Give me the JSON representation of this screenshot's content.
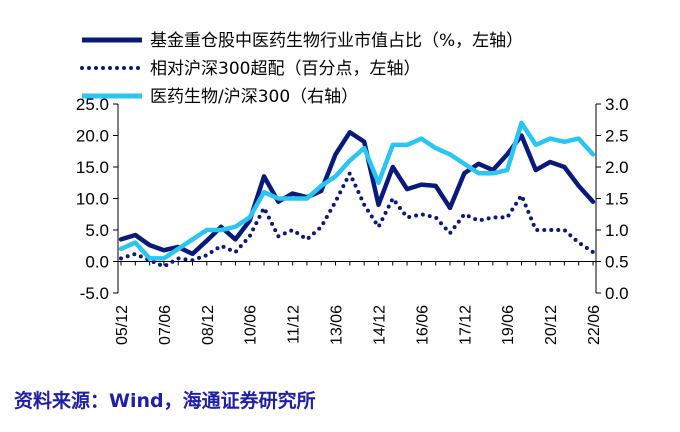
{
  "source_note": "资料来源：Wind，海通证券研究所",
  "chart_data": {
    "type": "line",
    "x": [
      "05/12",
      "06/06",
      "06/12",
      "07/06",
      "07/12",
      "08/06",
      "08/12",
      "09/06",
      "09/12",
      "10/06",
      "10/12",
      "11/06",
      "11/12",
      "12/06",
      "12/12",
      "13/06",
      "13/12",
      "14/06",
      "14/12",
      "15/06",
      "15/12",
      "16/06",
      "16/12",
      "17/06",
      "17/12",
      "18/06",
      "18/12",
      "19/06",
      "19/12",
      "20/06",
      "20/12",
      "21/06",
      "21/12",
      "22/06"
    ],
    "x_tick_labels": [
      "05/12",
      "07/06",
      "08/12",
      "10/06",
      "11/12",
      "13/06",
      "14/12",
      "16/06",
      "17/12",
      "19/06",
      "20/12",
      "22/06"
    ],
    "y_left": {
      "range": [
        -5,
        25
      ],
      "ticks": [
        "-5.0",
        "0.0",
        "5.0",
        "10.0",
        "15.0",
        "20.0",
        "25.0"
      ]
    },
    "y_right": {
      "range": [
        0,
        3
      ],
      "ticks": [
        "0.0",
        "0.5",
        "1.0",
        "1.5",
        "2.0",
        "2.5",
        "3.0"
      ]
    },
    "legend_position": "top",
    "series": [
      {
        "name": "基金重仓股中医药生物行业市值占比（%，左轴）",
        "axis": "left",
        "style": "solid-thick",
        "color": "#0a1a7a",
        "values": [
          3.5,
          4.2,
          2.6,
          1.8,
          2.3,
          1.2,
          3.3,
          5.5,
          3.5,
          6.5,
          13.5,
          9.5,
          10.8,
          10.2,
          11.2,
          17.0,
          20.5,
          19.0,
          9.0,
          15.0,
          11.5,
          12.2,
          12.0,
          8.5,
          14.0,
          15.5,
          14.5,
          17.0,
          20.0,
          14.5,
          15.8,
          15.0,
          12.0,
          9.5
        ]
      },
      {
        "name": "相对沪深300超配（百分点，左轴）",
        "axis": "left",
        "style": "dotted",
        "color": "#0a1a7a",
        "values": [
          0.5,
          1.2,
          0.2,
          -0.8,
          0.5,
          0.2,
          1.0,
          2.5,
          1.5,
          4.0,
          8.5,
          4.0,
          5.0,
          3.5,
          5.5,
          9.5,
          14.0,
          9.0,
          5.5,
          10.0,
          7.0,
          7.5,
          7.0,
          4.5,
          7.5,
          6.5,
          7.0,
          7.0,
          10.5,
          5.0,
          5.0,
          5.0,
          3.0,
          1.5
        ]
      },
      {
        "name": "医药生物/沪深300（右轴）",
        "axis": "right",
        "style": "solid-thick",
        "color": "#29c5f3",
        "values": [
          0.7,
          0.8,
          0.55,
          0.55,
          0.7,
          0.85,
          1.0,
          1.0,
          1.05,
          1.2,
          1.6,
          1.5,
          1.5,
          1.5,
          1.7,
          1.85,
          2.1,
          2.3,
          1.75,
          2.35,
          2.35,
          2.45,
          2.3,
          2.2,
          2.05,
          1.9,
          1.9,
          1.95,
          2.7,
          2.35,
          2.45,
          2.4,
          2.45,
          2.2
        ]
      }
    ]
  }
}
